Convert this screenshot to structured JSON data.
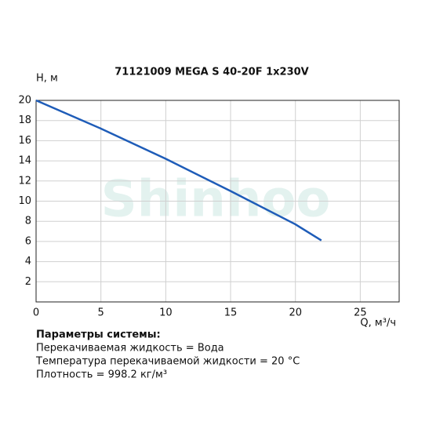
{
  "chart_data": {
    "type": "line",
    "title": "71121009 MEGA S 40-20F 1x230V",
    "y_label": "H, м",
    "x_label": "Q, м³/ч",
    "watermark": "Shinhoo",
    "x": [
      0,
      5,
      10,
      15,
      20,
      22
    ],
    "series": [
      {
        "name": "H",
        "color": "#1e5cb8",
        "values": [
          20,
          17.2,
          14.2,
          11.0,
          7.7,
          6.1
        ]
      }
    ],
    "xlim": [
      0,
      28
    ],
    "xticks": [
      0,
      5,
      10,
      15,
      20,
      25
    ],
    "ylim": [
      0,
      20
    ],
    "yticks": [
      2,
      4,
      6,
      8,
      10,
      12,
      14,
      16,
      18,
      20
    ],
    "grid": true,
    "annotations": [
      "Параметры системы:",
      "Перекачиваемая жидкость = Вода",
      "Температура перекачиваемой жидкости = 20 °C",
      "Плотность = 998.2 кг/м³"
    ]
  }
}
